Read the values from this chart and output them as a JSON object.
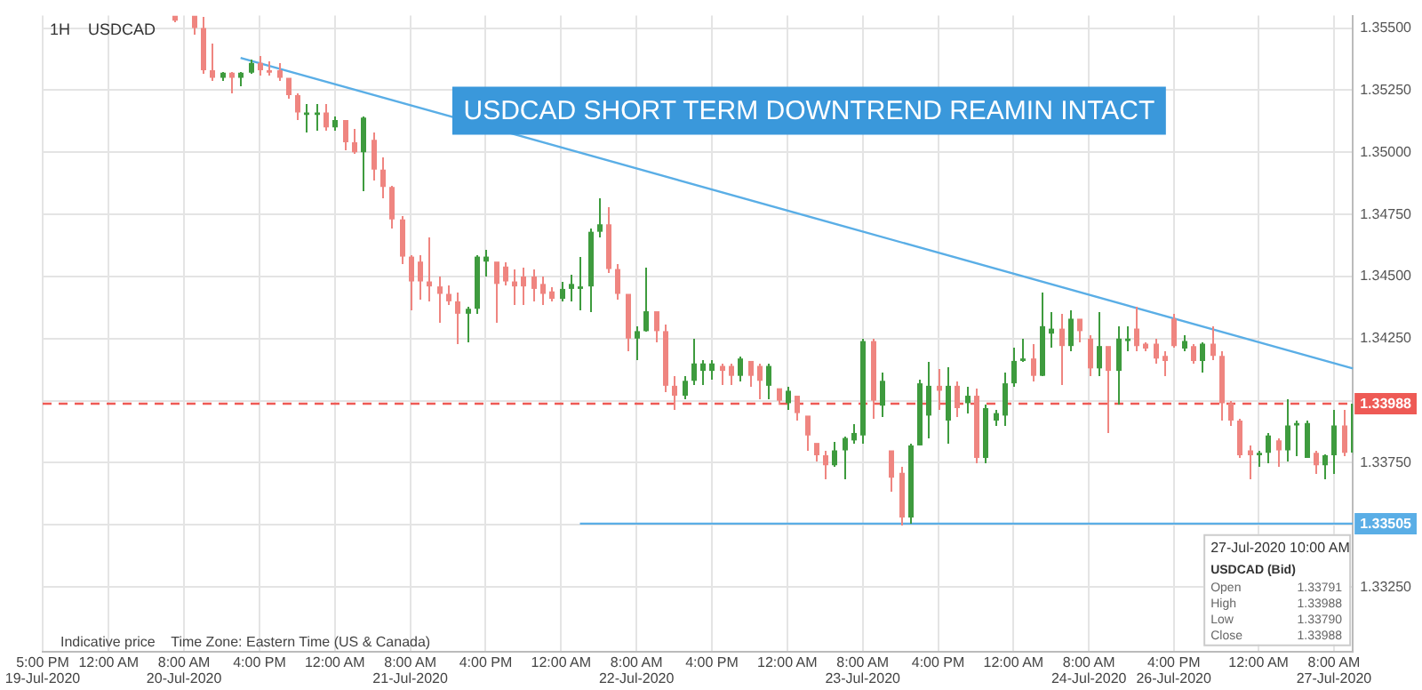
{
  "chart_data": {
    "type": "candlestick",
    "title": "USDCAD SHORT TERM DOWNTREND REAMIN INTACT",
    "annotations": [
      "1H    USDCAD",
      "Indicative price    Time Zone: Eastern Time (US & Canada)",
      "27-Jul-2020 10:00 AM",
      "USDCAD (Bid)",
      "Open",
      "1.33791",
      "High",
      "1.33988",
      "Low",
      "1.33790",
      "Close",
      "1.33988"
    ],
    "categories": [
      "5:00 PM\n19-Jul-2020",
      null,
      null,
      null,
      null,
      null,
      null,
      "12:00 AM",
      null,
      null,
      null,
      null,
      null,
      null,
      null,
      "8:00 AM\n20-Jul-2020",
      null,
      null,
      null,
      null,
      null,
      null,
      null,
      "4:00 PM",
      null,
      null,
      null,
      null,
      null,
      null,
      null,
      "12:00 AM",
      null,
      null,
      null,
      null,
      null,
      null,
      null,
      "8:00 AM\n21-Jul-2020",
      null,
      null,
      null,
      null,
      null,
      null,
      null,
      "4:00 PM",
      null,
      null,
      null,
      null,
      null,
      null,
      null,
      "12:00 AM",
      null,
      null,
      null,
      null,
      null,
      null,
      null,
      "8:00 AM\n22-Jul-2020",
      null,
      null,
      null,
      null,
      null,
      null,
      null,
      "4:00 PM",
      null,
      null,
      null,
      null,
      null,
      null,
      null,
      "12:00 AM",
      null,
      null,
      null,
      null,
      null,
      null,
      null,
      "8:00 AM\n23-Jul-2020",
      null,
      null,
      null,
      null,
      null,
      null,
      null,
      "4:00 PM",
      null,
      null,
      null,
      null,
      null,
      null,
      null,
      "12:00 AM",
      null,
      null,
      null,
      null,
      null,
      null,
      null,
      "8:00 AM\n24-Jul-2020",
      null,
      null,
      null,
      null,
      null,
      null,
      null,
      null,
      "4:00 PM\n26-Jul-2020",
      null,
      null,
      null,
      null,
      null,
      null,
      null,
      null,
      "12:00 AM",
      null,
      null,
      null,
      null,
      null,
      null,
      null,
      "8:00 AM\n27-Jul-2020",
      null,
      null
    ],
    "ohlc": [
      null,
      null,
      null,
      null,
      null,
      null,
      null,
      null,
      null,
      null,
      null,
      null,
      null,
      null,
      [
        1.3555,
        1.3555,
        1.3553,
        1.3553
      ],
      null,
      [
        1.3555,
        1.3555,
        1.3548,
        1.355
      ],
      [
        1.355,
        1.3555,
        1.3532,
        1.3533
      ],
      [
        1.3533,
        1.3544,
        1.3529,
        1.353
      ],
      [
        1.353,
        1.3533,
        1.3529,
        1.3532
      ],
      [
        1.3532,
        1.3533,
        1.3524,
        1.353
      ],
      [
        1.353,
        1.3533,
        1.3527,
        1.3532
      ],
      [
        1.3532,
        1.3538,
        1.3532,
        1.3536
      ],
      [
        1.3536,
        1.3539,
        1.3531,
        1.3533
      ],
      [
        1.3533,
        1.3537,
        1.3531,
        1.3532
      ],
      [
        1.3533,
        1.3536,
        1.3529,
        1.353
      ],
      [
        1.353,
        1.353,
        1.3522,
        1.3523
      ],
      [
        1.3523,
        1.3524,
        1.3513,
        1.3516
      ],
      [
        1.3515,
        1.352,
        1.3508,
        1.3516
      ],
      [
        1.3515,
        1.352,
        1.3509,
        1.3516
      ],
      [
        1.3516,
        1.352,
        1.3509,
        1.351
      ],
      [
        1.351,
        1.3515,
        1.3509,
        1.3513
      ],
      [
        1.3513,
        1.3513,
        1.3501,
        1.3504
      ],
      [
        1.3504,
        1.351,
        1.35,
        1.35
      ],
      [
        1.35,
        1.3515,
        1.3485,
        1.3514
      ],
      [
        1.3505,
        1.3508,
        1.3489,
        1.3493
      ],
      [
        1.3493,
        1.3498,
        1.3482,
        1.3486
      ],
      [
        1.3486,
        1.3487,
        1.347,
        1.3473
      ],
      [
        1.3473,
        1.3475,
        1.3455,
        1.3458
      ],
      [
        1.3458,
        1.3459,
        1.3437,
        1.3448
      ],
      [
        1.3456,
        1.3459,
        1.3441,
        1.3448
      ],
      [
        1.3448,
        1.3466,
        1.344,
        1.3446
      ],
      [
        1.3446,
        1.345,
        1.3432,
        1.3443
      ],
      [
        1.3443,
        1.3447,
        1.3439,
        1.344
      ],
      [
        1.344,
        1.3444,
        1.3423,
        1.3435
      ],
      [
        1.3435,
        1.3438,
        1.3424,
        1.3437
      ],
      [
        1.3437,
        1.3459,
        1.3435,
        1.3458
      ],
      [
        1.3456,
        1.3461,
        1.345,
        1.3458
      ],
      [
        1.3456,
        1.3456,
        1.3432,
        1.3447
      ],
      [
        1.3454,
        1.3456,
        1.3447,
        1.3448
      ],
      [
        1.3448,
        1.3453,
        1.3439,
        1.3446
      ],
      [
        1.345,
        1.3454,
        1.3439,
        1.3446
      ],
      [
        1.345,
        1.3453,
        1.344,
        1.3445
      ],
      [
        1.3447,
        1.345,
        1.3439,
        1.3443
      ],
      [
        1.3444,
        1.3446,
        1.344,
        1.3441
      ],
      [
        1.3441,
        1.3448,
        1.344,
        1.3445
      ],
      [
        1.3445,
        1.3451,
        1.344,
        1.3447
      ],
      [
        1.3445,
        1.3458,
        1.3437,
        1.3446
      ],
      [
        1.3446,
        1.347,
        1.3436,
        1.3468
      ],
      [
        1.3468,
        1.3482,
        1.3466,
        1.3471
      ],
      [
        1.3471,
        1.3478,
        1.3452,
        1.3453
      ],
      [
        1.3453,
        1.3455,
        1.3441,
        1.3443
      ],
      [
        1.3443,
        1.3443,
        1.342,
        1.3425
      ],
      [
        1.3425,
        1.343,
        1.3417,
        1.3428
      ],
      [
        1.3428,
        1.3454,
        1.3428,
        1.3436
      ],
      [
        1.3436,
        1.3436,
        1.3424,
        1.3428
      ],
      [
        1.3428,
        1.3431,
        1.3404,
        1.3406
      ],
      [
        1.3406,
        1.341,
        1.3397,
        1.3402
      ],
      [
        1.3402,
        1.341,
        1.3401,
        1.3408
      ],
      [
        1.3408,
        1.3425,
        1.3407,
        1.3415
      ],
      [
        1.3412,
        1.3417,
        1.3407,
        1.3415
      ],
      [
        1.3412,
        1.3417,
        1.3409,
        1.3415
      ],
      [
        1.3414,
        1.3415,
        1.3407,
        1.3412
      ],
      [
        1.3414,
        1.3415,
        1.3407,
        1.341
      ],
      [
        1.341,
        1.3418,
        1.3408,
        1.3417
      ],
      [
        1.3416,
        1.3416,
        1.3406,
        1.341
      ],
      [
        1.3414,
        1.3415,
        1.3401,
        1.3408
      ],
      [
        1.3406,
        1.3415,
        1.3401,
        1.3414
      ],
      [
        1.3405,
        1.3405,
        1.3399,
        1.34
      ],
      [
        1.3399,
        1.3406,
        1.3397,
        1.3404
      ],
      [
        1.3402,
        1.3402,
        1.3392,
        1.3395
      ],
      [
        1.3394,
        1.3394,
        1.338,
        1.3386
      ],
      [
        1.3383,
        1.3383,
        1.3376,
        1.3378
      ],
      [
        1.3378,
        1.338,
        1.3369,
        1.3374
      ],
      [
        1.3374,
        1.3384,
        1.3374,
        1.338
      ],
      [
        1.338,
        1.3386,
        1.3369,
        1.3385
      ],
      [
        1.3384,
        1.3391,
        1.3383,
        1.3387
      ],
      [
        1.3386,
        1.3425,
        1.3383,
        1.3424
      ],
      [
        1.3424,
        1.3425,
        1.3393,
        1.34
      ],
      [
        1.3398,
        1.3412,
        1.3394,
        1.3408
      ],
      [
        1.338,
        1.338,
        1.3364,
        1.3369
      ],
      [
        1.3371,
        1.3374,
        1.335,
        1.3353
      ],
      [
        1.3353,
        1.3383,
        1.3351,
        1.3382
      ],
      [
        1.3382,
        1.3409,
        1.3382,
        1.3407
      ],
      [
        1.3394,
        1.3416,
        1.3385,
        1.3406
      ],
      [
        1.3406,
        1.3413,
        1.3397,
        1.3404
      ],
      [
        1.3392,
        1.3414,
        1.3383,
        1.3406
      ],
      [
        1.3406,
        1.3408,
        1.3394,
        1.3397
      ],
      [
        1.3399,
        1.3406,
        1.3395,
        1.3402
      ],
      [
        1.3402,
        1.3405,
        1.3375,
        1.3377
      ],
      [
        1.3377,
        1.3399,
        1.3375,
        1.3397
      ],
      [
        1.3392,
        1.3397,
        1.339,
        1.3395
      ],
      [
        1.3394,
        1.3412,
        1.339,
        1.3407
      ],
      [
        1.3407,
        1.3422,
        1.3406,
        1.3416
      ],
      [
        1.3416,
        1.3425,
        1.3416,
        1.3417
      ],
      [
        1.3417,
        1.3423,
        1.3408,
        1.341
      ],
      [
        1.341,
        1.3444,
        1.341,
        1.343
      ],
      [
        1.3427,
        1.3436,
        1.3422,
        1.3429
      ],
      [
        1.3429,
        1.3435,
        1.3407,
        1.3422
      ],
      [
        1.3422,
        1.3437,
        1.342,
        1.3433
      ],
      [
        1.3433,
        1.3433,
        1.3424,
        1.3428
      ],
      [
        1.3425,
        1.3427,
        1.341,
        1.3413
      ],
      [
        1.3413,
        1.3436,
        1.341,
        1.3422
      ],
      [
        1.3422,
        1.3422,
        1.3387,
        1.3412
      ],
      [
        1.3412,
        1.343,
        1.3399,
        1.3425
      ],
      [
        1.3424,
        1.343,
        1.342,
        1.3425
      ],
      [
        1.3429,
        1.3438,
        1.342,
        1.3422
      ],
      [
        1.3423,
        1.3424,
        1.342,
        1.3421
      ],
      [
        1.3423,
        1.3425,
        1.3415,
        1.3417
      ],
      [
        1.3418,
        1.342,
        1.341,
        1.3416
      ],
      [
        1.3433,
        1.3435,
        1.3422,
        1.3422
      ],
      [
        1.3421,
        1.3427,
        1.342,
        1.3424
      ],
      [
        1.3422,
        1.3423,
        1.3415,
        1.3416
      ],
      [
        1.3416,
        1.3424,
        1.3412,
        1.3423
      ],
      [
        1.3423,
        1.343,
        1.3417,
        1.3418
      ],
      [
        1.3418,
        1.342,
        1.3392,
        1.3399
      ],
      [
        1.3399,
        1.34,
        1.339,
        1.3392
      ],
      [
        1.3392,
        1.3393,
        1.3377,
        1.3378
      ],
      [
        1.338,
        1.3382,
        1.3369,
        1.3378
      ],
      [
        1.3378,
        1.338,
        1.3374,
        1.3379
      ],
      [
        1.3379,
        1.3387,
        1.3375,
        1.3386
      ],
      [
        1.3384,
        1.3385,
        1.3374,
        1.338
      ],
      [
        1.338,
        1.3401,
        1.3376,
        1.339
      ],
      [
        1.339,
        1.3392,
        1.3378,
        1.3391
      ],
      [
        1.3377,
        1.3392,
        1.3377,
        1.3391
      ],
      [
        1.3379,
        1.338,
        1.3371,
        1.3374
      ],
      [
        1.3374,
        1.3379,
        1.3369,
        1.3378
      ],
      [
        1.3378,
        1.3397,
        1.3371,
        1.339
      ],
      [
        1.339,
        1.3397,
        1.3378,
        1.3379
      ],
      [
        1.33791,
        1.33988,
        1.3379,
        1.33988
      ]
    ],
    "colors": [
      null,
      null,
      null,
      null,
      null,
      null,
      null,
      null,
      null,
      null,
      null,
      null,
      null,
      null,
      "#ef8580",
      null,
      "#ef8580",
      "#ef8580",
      "#ef8580",
      "#3e9b3e",
      "#ef8580",
      "#3e9b3e",
      "#3e9b3e",
      "#ef8580",
      "#ef8580",
      "#ef8580",
      "#ef8580",
      "#ef8580",
      "#3e9b3e",
      "#3e9b3e",
      "#ef8580",
      "#3e9b3e",
      "#ef8580",
      "#ef8580",
      "#3e9b3e",
      "#ef8580",
      "#ef8580",
      "#ef8580",
      "#ef8580",
      "#ef8580",
      "#ef8580",
      "#ef8580",
      "#ef8580",
      "#ef8580",
      "#ef8580",
      "#3e9b3e",
      "#3e9b3e",
      "#3e9b3e",
      "#ef8580",
      "#ef8580",
      "#ef8580",
      "#ef8580",
      "#ef8580",
      "#ef8580",
      "#ef8580",
      "#3e9b3e",
      "#3e9b3e",
      "#3e9b3e",
      "#3e9b3e",
      "#3e9b3e",
      "#ef8580",
      "#ef8580",
      "#ef8580",
      "#3e9b3e",
      "#3e9b3e",
      "#ef8580",
      "#ef8580",
      "#ef8580",
      "#3e9b3e",
      "#3e9b3e",
      "#3e9b3e",
      "#3e9b3e",
      "#ef8580",
      "#ef8580",
      "#3e9b3e",
      "#ef8580",
      "#ef8580",
      "#3e9b3e",
      "#ef8580",
      "#3e9b3e",
      "#ef8580",
      "#ef8580",
      "#ef8580",
      "#ef8580",
      "#3e9b3e",
      "#3e9b3e",
      "#3e9b3e",
      "#3e9b3e",
      "#ef8580",
      "#3e9b3e",
      "#ef8580",
      "#ef8580",
      "#3e9b3e",
      "#3e9b3e",
      "#3e9b3e",
      "#ef8580",
      "#3e9b3e",
      "#ef8580",
      "#3e9b3e",
      "#ef8580",
      "#3e9b3e",
      "#3e9b3e",
      "#3e9b3e",
      "#3e9b3e",
      "#3e9b3e",
      "#ef8580",
      "#3e9b3e",
      "#3e9b3e",
      "#ef8580",
      "#3e9b3e",
      "#ef8580",
      "#ef8580",
      "#3e9b3e",
      "#ef8580",
      "#3e9b3e",
      "#3e9b3e",
      "#ef8580",
      "#ef8580",
      "#ef8580",
      "#ef8580",
      "#ef8580",
      "#3e9b3e",
      "#ef8580",
      "#3e9b3e",
      "#ef8580",
      "#ef8580",
      "#ef8580",
      "#ef8580",
      "#ef8580",
      "#3e9b3e",
      "#3e9b3e",
      "#ef8580",
      "#3e9b3e",
      "#3e9b3e",
      "#3e9b3e",
      "#ef8580",
      "#3e9b3e",
      "#3e9b3e",
      "#ef8580",
      "#3e9b3e"
    ],
    "series": [
      {
        "type": "line",
        "color": "#5aaee6",
        "values": [
          null,
          null,
          null,
          null,
          null,
          null,
          null,
          null,
          null,
          null,
          null,
          null,
          null,
          null,
          null,
          null,
          null,
          null,
          null,
          null,
          null,
          1.3538,
          null,
          null,
          null,
          null,
          null,
          null,
          null,
          null,
          null,
          null,
          null,
          null,
          null,
          null,
          null,
          null,
          null,
          null,
          null,
          null,
          null,
          null,
          null,
          null,
          null,
          null,
          null,
          null,
          null,
          null,
          null,
          null,
          null,
          null,
          null,
          null,
          null,
          null,
          null,
          null,
          null,
          null,
          null,
          null,
          null,
          null,
          null,
          null,
          null,
          null,
          null,
          null,
          null,
          null,
          null,
          null,
          null,
          null,
          null,
          null,
          null,
          null,
          null,
          null,
          null,
          null,
          null,
          null,
          null,
          null,
          null,
          null,
          null,
          null,
          null,
          null,
          null,
          null,
          null,
          null,
          null,
          null,
          null,
          null,
          null,
          null,
          null,
          null,
          null,
          null,
          null,
          null,
          null,
          null,
          null,
          null,
          null,
          null,
          null,
          null,
          null,
          null,
          null,
          null,
          null,
          null,
          null,
          null,
          null,
          null,
          null,
          null,
          null,
          null,
          null,
          null,
          null,
          1.3413
        ]
      },
      {
        "type": "line",
        "color": "#5aaee6",
        "values": [
          null,
          null,
          null,
          null,
          null,
          null,
          null,
          null,
          null,
          null,
          null,
          null,
          null,
          null,
          null,
          null,
          null,
          null,
          null,
          null,
          null,
          null,
          null,
          null,
          null,
          null,
          null,
          null,
          null,
          null,
          null,
          null,
          null,
          null,
          null,
          null,
          null,
          null,
          null,
          null,
          null,
          null,
          null,
          null,
          null,
          null,
          null,
          null,
          null,
          null,
          null,
          null,
          null,
          null,
          null,
          null,
          null,
          1.33505,
          null,
          null,
          null,
          null,
          null,
          null,
          null,
          null,
          null,
          null,
          null,
          null,
          null,
          null,
          null,
          null,
          null,
          null,
          null,
          null,
          null,
          null,
          null,
          null,
          null,
          null,
          null,
          null,
          null,
          null,
          null,
          null,
          null,
          null,
          null,
          null,
          null,
          null,
          null,
          null,
          null,
          null,
          null,
          null,
          null,
          null,
          null,
          null,
          null,
          null,
          null,
          null,
          null,
          null,
          null,
          null,
          null,
          null,
          null,
          null,
          null,
          null,
          null,
          null,
          null,
          null,
          null,
          null,
          null,
          null,
          null,
          null,
          null,
          null,
          null,
          null,
          null,
          null,
          null,
          null,
          null,
          1.33505
        ],
        "value_labels": [
          null,
          null,
          null,
          null,
          null,
          null,
          null,
          null,
          null,
          null,
          null,
          null,
          null,
          null,
          null,
          null,
          null,
          null,
          null,
          null,
          null,
          null,
          null,
          null,
          null,
          null,
          null,
          null,
          null,
          null,
          null,
          null,
          null,
          null,
          null,
          null,
          null,
          null,
          null,
          null,
          null,
          null,
          null,
          null,
          null,
          null,
          null,
          null,
          null,
          null,
          null,
          null,
          null,
          null,
          null,
          null,
          null,
          null,
          null,
          null,
          null,
          null,
          null,
          null,
          null,
          null,
          null,
          null,
          null,
          null,
          null,
          null,
          null,
          null,
          null,
          null,
          null,
          null,
          null,
          null,
          null,
          null,
          null,
          null,
          null,
          null,
          null,
          null,
          null,
          null,
          null,
          null,
          null,
          null,
          null,
          null,
          null,
          null,
          null,
          null,
          null,
          null,
          null,
          null,
          null,
          null,
          null,
          null,
          null,
          null,
          null,
          null,
          null,
          null,
          null,
          null,
          null,
          null,
          null,
          null,
          null,
          null,
          null,
          null,
          null,
          null,
          null,
          null,
          null,
          null,
          null,
          null,
          null,
          null,
          null,
          null,
          null,
          null,
          null,
          "1.33505"
        ]
      }
    ],
    "ref_lines": [
      {
        "axis": "y",
        "value": 1.33988,
        "label": "1.33988",
        "color": "#ee5a55",
        "line_style": "dashed"
      }
    ],
    "ylim": [
      1.3299,
      1.3555
    ],
    "yticks": [
      {
        "value": 1.3325,
        "label": "1.33250"
      },
      {
        "value": 1.335,
        "label": null
      },
      {
        "value": 1.3375,
        "label": "1.33750"
      },
      {
        "value": 1.34,
        "label": null
      },
      {
        "value": 1.3425,
        "label": "1.34250"
      },
      {
        "value": 1.345,
        "label": "1.34500"
      },
      {
        "value": 1.3475,
        "label": "1.34750"
      },
      {
        "value": 1.35,
        "label": "1.35000"
      },
      {
        "value": 1.3525,
        "label": "1.35250"
      },
      {
        "value": 1.355,
        "label": "1.35500"
      }
    ],
    "grid": true
  }
}
